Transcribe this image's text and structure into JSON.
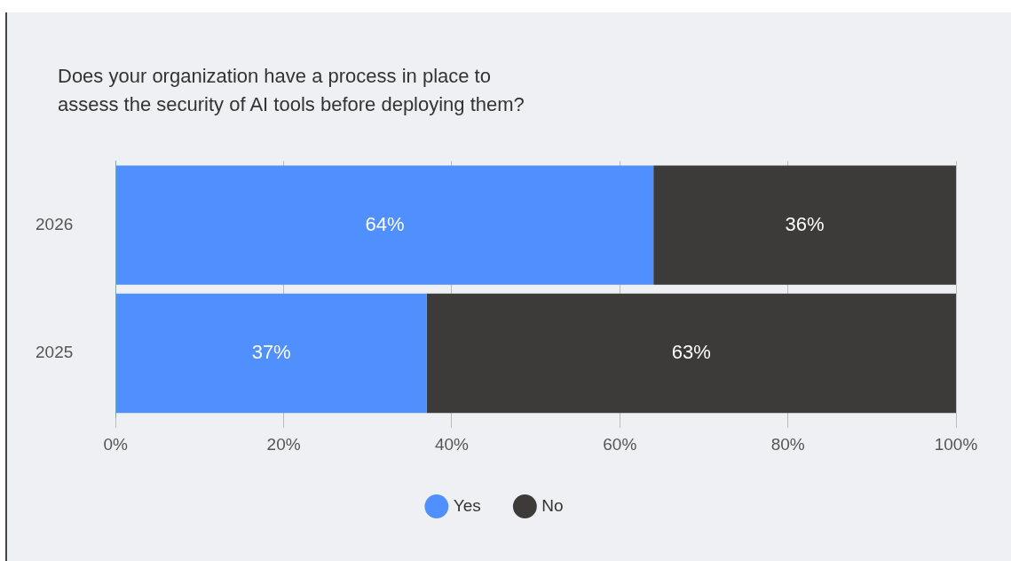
{
  "chart_data": {
    "type": "bar",
    "orientation": "horizontal",
    "stacked": true,
    "title": "Does your organization have a process in place to\nassess the security of AI tools before deploying them?",
    "categories": [
      "2026",
      "2025"
    ],
    "series": [
      {
        "name": "Yes",
        "color": "#4f8ffe",
        "values": [
          64,
          37
        ],
        "value_labels": [
          "64%",
          "37%"
        ]
      },
      {
        "name": "No",
        "color": "#3d3b39",
        "values": [
          36,
          63
        ],
        "value_labels": [
          "36%",
          "63%"
        ]
      }
    ],
    "xlim": [
      0,
      100
    ],
    "xticks": [
      {
        "value": 0,
        "label": "0%"
      },
      {
        "value": 20,
        "label": "20%"
      },
      {
        "value": 40,
        "label": "40%"
      },
      {
        "value": 60,
        "label": "60%"
      },
      {
        "value": 80,
        "label": "80%"
      },
      {
        "value": 100,
        "label": "100%"
      }
    ],
    "grid": "x",
    "legend": "bottom"
  }
}
